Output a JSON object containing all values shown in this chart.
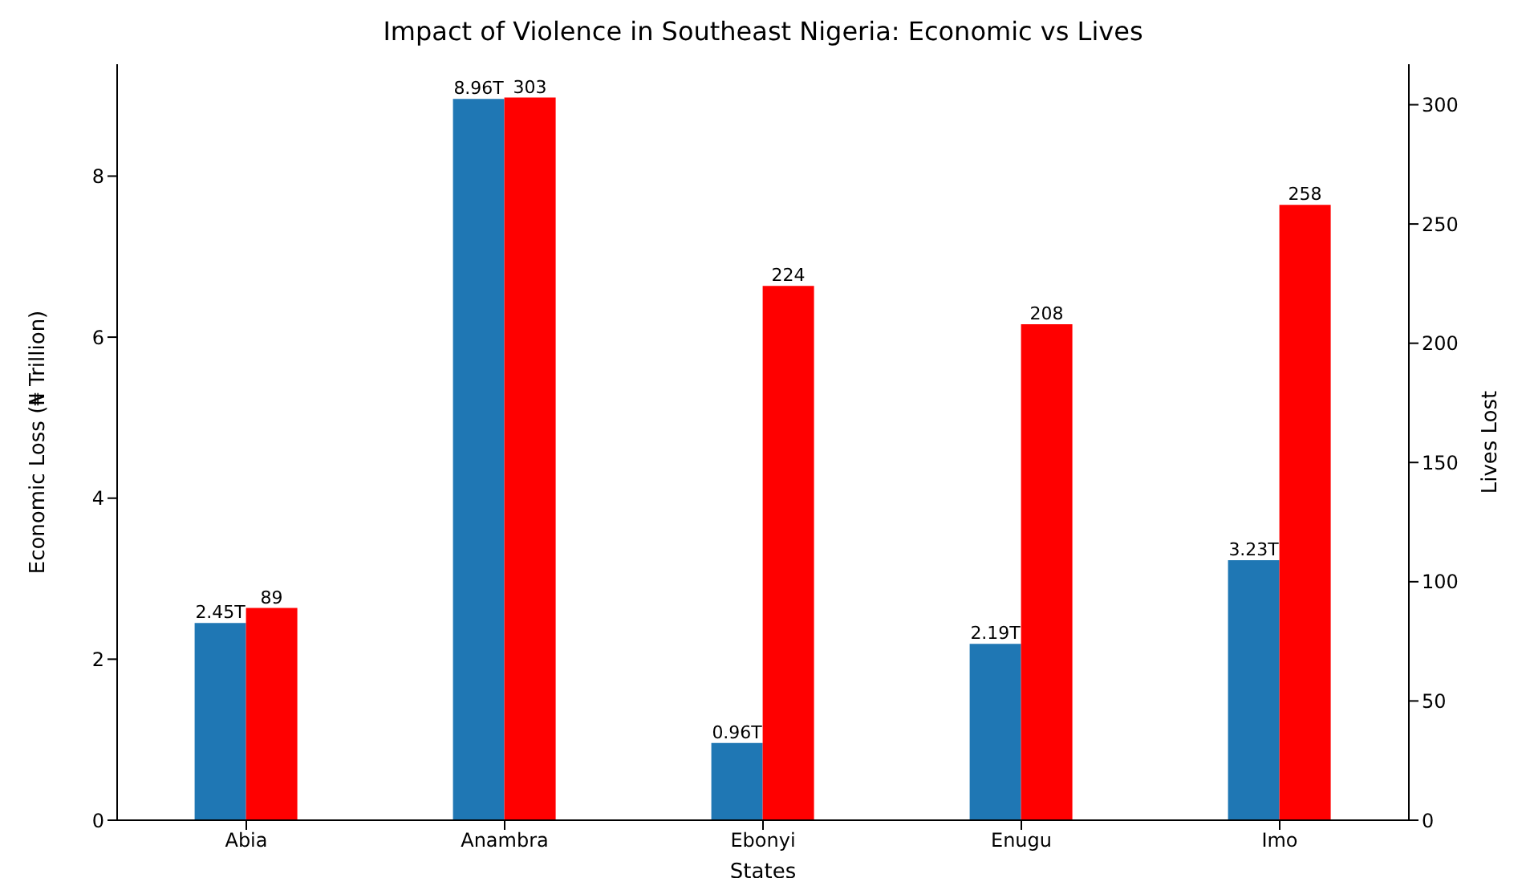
{
  "chart_data": {
    "type": "bar",
    "title": "Impact of Violence in Southeast Nigeria: Economic vs Lives",
    "xlabel": "States",
    "ylabel": "Economic Loss (₦ Trillion)",
    "y2label": "Lives Lost",
    "categories": [
      "Abia",
      "Anambra",
      "Ebonyi",
      "Enugu",
      "Imo"
    ],
    "series": [
      {
        "color": "#1f77b4",
        "values": [
          2.45,
          8.96,
          0.96,
          2.19,
          3.23
        ],
        "value_labels": [
          "2.45T",
          "8.96T",
          "0.96T",
          "2.19T",
          "3.23T"
        ]
      },
      {
        "color": "#ff0000",
        "axis": "y2",
        "values": [
          89,
          303,
          224,
          208,
          258
        ],
        "value_labels": [
          "89",
          "303",
          "224",
          "208",
          "258"
        ]
      }
    ],
    "ylim": [
      0,
      9.39
    ],
    "yticks": [
      0,
      2,
      4,
      6,
      8
    ],
    "y2lim": [
      0,
      317
    ],
    "y2ticks": [
      0,
      50,
      100,
      150,
      200,
      250,
      300
    ],
    "grid": false,
    "legend": false
  }
}
